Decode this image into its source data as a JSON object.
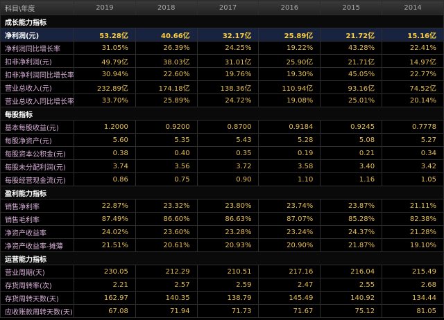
{
  "header": [
    "科目\\年度",
    "2019",
    "2018",
    "2017",
    "2016",
    "2015",
    "2014"
  ],
  "sections": [
    {
      "title": "成长能力指标",
      "rows": [
        {
          "label": "净利润(元)",
          "values": [
            "53.28亿",
            "40.66亿",
            "32.17亿",
            "25.89亿",
            "21.72亿",
            "15.16亿"
          ]
        },
        {
          "label": "净利润同比增长率",
          "values": [
            "31.05%",
            "26.39%",
            "24.25%",
            "19.22%",
            "43.28%",
            "22.41%"
          ]
        },
        {
          "label": "扣非净利润(元)",
          "values": [
            "49.79亿",
            "38.03亿",
            "31.01亿",
            "25.90亿",
            "21.71亿",
            "14.97亿"
          ]
        },
        {
          "label": "扣非净利润同比增长率",
          "values": [
            "30.94%",
            "22.60%",
            "19.76%",
            "19.30%",
            "45.05%",
            "22.77%"
          ]
        },
        {
          "label": "营业总收入(元)",
          "values": [
            "232.89亿",
            "174.18亿",
            "138.36亿",
            "110.94亿",
            "93.16亿",
            "74.52亿"
          ]
        },
        {
          "label": "营业总收入同比增长率",
          "values": [
            "33.70%",
            "25.89%",
            "24.72%",
            "19.08%",
            "25.01%",
            "20.14%"
          ]
        }
      ]
    },
    {
      "title": "每股指标",
      "rows": [
        {
          "label": "基本每股收益(元)",
          "values": [
            "1.2000",
            "0.9200",
            "0.8700",
            "0.9184",
            "0.9245",
            "0.7778"
          ]
        },
        {
          "label": "每股净资产(元)",
          "values": [
            "5.60",
            "5.35",
            "5.43",
            "5.28",
            "5.08",
            "5.27"
          ]
        },
        {
          "label": "每股资本公积金(元)",
          "values": [
            "0.38",
            "0.40",
            "0.35",
            "0.19",
            "0.21",
            "0.34"
          ]
        },
        {
          "label": "每股未分配利润(元)",
          "values": [
            "3.74",
            "3.56",
            "3.72",
            "3.58",
            "3.40",
            "3.42"
          ]
        },
        {
          "label": "每股经营现金流(元)",
          "values": [
            "0.86",
            "0.75",
            "0.90",
            "1.10",
            "1.16",
            "1.05"
          ]
        }
      ]
    },
    {
      "title": "盈利能力指标",
      "rows": [
        {
          "label": "销售净利率",
          "values": [
            "22.87%",
            "23.32%",
            "23.80%",
            "23.74%",
            "23.87%",
            "21.11%"
          ]
        },
        {
          "label": "销售毛利率",
          "values": [
            "87.49%",
            "86.60%",
            "86.63%",
            "87.07%",
            "85.28%",
            "82.38%"
          ]
        },
        {
          "label": "净资产收益率",
          "values": [
            "24.02%",
            "23.60%",
            "23.28%",
            "23.24%",
            "24.37%",
            "21.28%"
          ]
        },
        {
          "label": "净资产收益率-摊薄",
          "values": [
            "21.51%",
            "20.61%",
            "20.93%",
            "20.90%",
            "21.87%",
            "19.10%"
          ]
        }
      ]
    },
    {
      "title": "运营能力指标",
      "rows": [
        {
          "label": "营业周期(天)",
          "values": [
            "230.05",
            "212.29",
            "210.51",
            "217.16",
            "216.04",
            "215.49"
          ]
        },
        {
          "label": "存货周转率(次)",
          "values": [
            "2.21",
            "2.57",
            "2.59",
            "2.47",
            "2.55",
            "2.68"
          ]
        },
        {
          "label": "存货周转天数(天)",
          "values": [
            "162.97",
            "140.35",
            "138.79",
            "145.49",
            "140.92",
            "134.44"
          ]
        },
        {
          "label": "应收账款周转天数(天)",
          "values": [
            "67.08",
            "71.94",
            "71.73",
            "71.67",
            "75.12",
            "81.05"
          ]
        }
      ]
    }
  ]
}
